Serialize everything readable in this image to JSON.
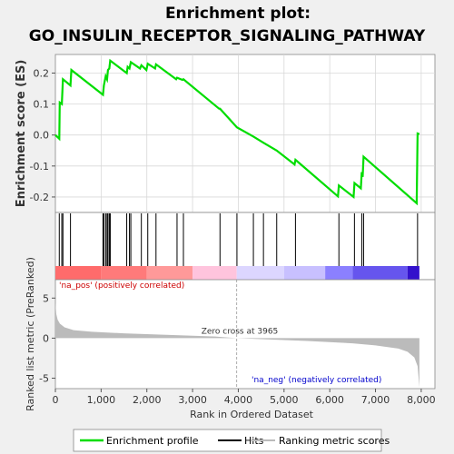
{
  "chart_data": {
    "type": "line",
    "title_line1": "Enrichment plot:",
    "title_line2": "GO_INSULIN_RECEPTOR_SIGNALING_PATHWAY",
    "es_panel": {
      "ylabel": "Enrichment score (ES)",
      "ylim": [
        -0.25,
        0.26
      ],
      "yticks": [
        -0.2,
        -0.1,
        0.0,
        0.1,
        0.2
      ],
      "ytick_labels": [
        "-0.2",
        "-0.1",
        "0.0",
        "0.1",
        "0.2"
      ],
      "grid": true,
      "line_color": "#00dd00",
      "series_name": "Enrichment profile",
      "points": [
        [
          0,
          0.0
        ],
        [
          85,
          -0.012
        ],
        [
          95,
          0.105
        ],
        [
          140,
          0.1
        ],
        [
          165,
          0.18
        ],
        [
          330,
          0.16
        ],
        [
          350,
          0.21
        ],
        [
          1040,
          0.13
        ],
        [
          1060,
          0.16
        ],
        [
          1100,
          0.19
        ],
        [
          1130,
          0.18
        ],
        [
          1150,
          0.21
        ],
        [
          1180,
          0.215
        ],
        [
          1200,
          0.24
        ],
        [
          1560,
          0.2
        ],
        [
          1580,
          0.22
        ],
        [
          1620,
          0.215
        ],
        [
          1650,
          0.235
        ],
        [
          1850,
          0.215
        ],
        [
          1880,
          0.225
        ],
        [
          1990,
          0.21
        ],
        [
          2020,
          0.23
        ],
        [
          2180,
          0.215
        ],
        [
          2200,
          0.228
        ],
        [
          2640,
          0.18
        ],
        [
          2660,
          0.185
        ],
        [
          2780,
          0.178
        ],
        [
          2800,
          0.18
        ],
        [
          3580,
          0.085
        ],
        [
          3600,
          0.085
        ],
        [
          3970,
          0.025
        ],
        [
          4330,
          -0.005
        ],
        [
          4550,
          -0.025
        ],
        [
          4840,
          -0.05
        ],
        [
          5230,
          -0.095
        ],
        [
          5250,
          -0.08
        ],
        [
          6180,
          -0.198
        ],
        [
          6200,
          -0.163
        ],
        [
          6520,
          -0.2
        ],
        [
          6540,
          -0.155
        ],
        [
          6680,
          -0.172
        ],
        [
          6700,
          -0.12
        ],
        [
          6720,
          -0.135
        ],
        [
          6740,
          -0.07
        ],
        [
          7900,
          -0.22
        ],
        [
          7920,
          0.005
        ],
        [
          7960,
          0.003
        ]
      ]
    },
    "hits": {
      "positions": [
        85,
        140,
        165,
        330,
        1040,
        1060,
        1100,
        1130,
        1150,
        1180,
        1200,
        1560,
        1620,
        1650,
        1880,
        2020,
        2200,
        2660,
        2800,
        3600,
        3970,
        4330,
        4550,
        4840,
        5250,
        6200,
        6540,
        6700,
        6740,
        7920
      ]
    },
    "color_bar": {
      "segments": [
        {
          "from": 0,
          "to": 1000,
          "color": "#ff6b6b"
        },
        {
          "from": 1000,
          "to": 2000,
          "color": "#ff7a7a"
        },
        {
          "from": 2000,
          "to": 3000,
          "color": "#ff9999"
        },
        {
          "from": 3000,
          "to": 3965,
          "color": "#ffc4dd"
        },
        {
          "from": 3965,
          "to": 5000,
          "color": "#dcd6ff"
        },
        {
          "from": 5000,
          "to": 5900,
          "color": "#c8c0ff"
        },
        {
          "from": 5900,
          "to": 6500,
          "color": "#8b80ff"
        },
        {
          "from": 6500,
          "to": 7700,
          "color": "#6655ee"
        },
        {
          "from": 7700,
          "to": 7960,
          "color": "#3311cc"
        }
      ]
    },
    "metric_panel": {
      "ylabel": "Ranked list metric (PreRanked)",
      "ylim": [
        -6.3,
        7.3
      ],
      "yticks": [
        -5,
        0,
        5
      ],
      "ytick_labels": [
        "-5",
        "0",
        "5"
      ],
      "fill_color": "#bbbbbb",
      "profile": [
        [
          0,
          4.5
        ],
        [
          20,
          3.0
        ],
        [
          50,
          2.3
        ],
        [
          100,
          1.8
        ],
        [
          200,
          1.35
        ],
        [
          400,
          1.0
        ],
        [
          800,
          0.8
        ],
        [
          1500,
          0.6
        ],
        [
          2500,
          0.4
        ],
        [
          3500,
          0.2
        ],
        [
          3965,
          0.0
        ],
        [
          4500,
          -0.12
        ],
        [
          5500,
          -0.35
        ],
        [
          6500,
          -0.65
        ],
        [
          7000,
          -0.9
        ],
        [
          7500,
          -1.3
        ],
        [
          7700,
          -1.7
        ],
        [
          7850,
          -2.4
        ],
        [
          7920,
          -3.5
        ],
        [
          7960,
          -6.1
        ]
      ],
      "zero_cross_label": "Zero cross at 3965",
      "zero_cross_x": 3965,
      "pos_label": "'na_pos' (positively correlated)",
      "neg_label": "'na_neg' (negatively correlated)",
      "pos_color": "#cc0000",
      "neg_color": "#0000cc"
    },
    "x_axis": {
      "label": "Rank in Ordered Dataset",
      "xlim": [
        0,
        8300
      ],
      "ticks": [
        0,
        1000,
        2000,
        3000,
        4000,
        5000,
        6000,
        7000,
        8000
      ],
      "tick_labels": [
        "0",
        "1,000",
        "2,000",
        "3,000",
        "4,000",
        "5,000",
        "6,000",
        "7,000",
        "8,000"
      ]
    },
    "legend": {
      "placement": "bottom",
      "entries": [
        {
          "label": "Enrichment profile",
          "color": "#00dd00"
        },
        {
          "label": "Hits",
          "color": "#000000"
        },
        {
          "label": "Ranking metric scores",
          "color": "#bbbbbb"
        }
      ]
    }
  }
}
